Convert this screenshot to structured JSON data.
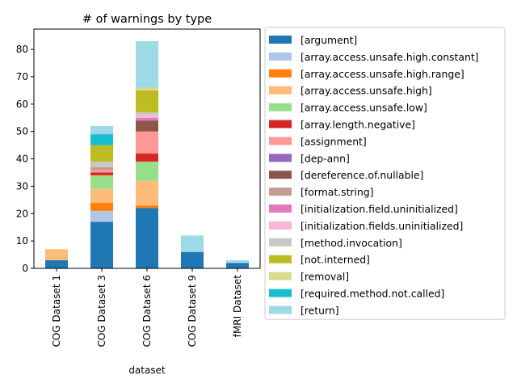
{
  "chart_data": {
    "type": "bar",
    "stacked": true,
    "title": "# of warnings by type",
    "xlabel": "dataset",
    "ylabel": "",
    "ylim": [
      0,
      87.4
    ],
    "yticks": [
      0,
      10,
      20,
      30,
      40,
      50,
      60,
      70,
      80
    ],
    "grid": false,
    "legend_position": "right-outside",
    "categories": [
      "COG Dataset 1",
      "COG Dataset 3",
      "COG Dataset 6",
      "COG Dataset 9",
      "fMRI Dataset"
    ],
    "series": [
      {
        "name": "[argument]",
        "color": "#1f77b4",
        "values": [
          3,
          17,
          22,
          6,
          2
        ]
      },
      {
        "name": "[array.access.unsafe.high.constant]",
        "color": "#aec7e8",
        "values": [
          0,
          4,
          0,
          0,
          0
        ]
      },
      {
        "name": "[array.access.unsafe.high.range]",
        "color": "#ff7f0e",
        "values": [
          0,
          3,
          1,
          0,
          0
        ]
      },
      {
        "name": "[array.access.unsafe.high]",
        "color": "#ffbb78",
        "values": [
          4,
          5,
          9,
          0,
          0
        ]
      },
      {
        "name": "[array.access.unsafe.low]",
        "color": "#98df8a",
        "values": [
          0,
          5,
          7,
          0,
          0
        ]
      },
      {
        "name": "[array.length.negative]",
        "color": "#d62728",
        "values": [
          0,
          1,
          3,
          0,
          0
        ]
      },
      {
        "name": "[assignment]",
        "color": "#ff9896",
        "values": [
          0,
          1,
          8,
          0,
          0
        ]
      },
      {
        "name": "[dep-ann]",
        "color": "#9467bd",
        "values": [
          0,
          0,
          0,
          0,
          0
        ]
      },
      {
        "name": "[dereference.of.nullable]",
        "color": "#8c564b",
        "values": [
          0,
          0,
          4,
          0,
          0
        ]
      },
      {
        "name": "[format.string]",
        "color": "#c49c94",
        "values": [
          0,
          1,
          0,
          0,
          0
        ]
      },
      {
        "name": "[initialization.field.uninitialized]",
        "color": "#e377c2",
        "values": [
          0,
          0,
          1,
          0,
          0
        ]
      },
      {
        "name": "[initialization.fields.uninitialized]",
        "color": "#f7b6d2",
        "values": [
          0,
          0,
          1,
          0,
          0
        ]
      },
      {
        "name": "[method.invocation]",
        "color": "#c7c7c7",
        "values": [
          0,
          2,
          1,
          0,
          0
        ]
      },
      {
        "name": "[not.interned]",
        "color": "#bcbd22",
        "values": [
          0,
          6,
          8,
          0,
          0
        ]
      },
      {
        "name": "[removal]",
        "color": "#dbdb8d",
        "values": [
          0,
          0,
          1,
          0,
          0
        ]
      },
      {
        "name": "[required.method.not.called]",
        "color": "#17becf",
        "values": [
          0,
          4,
          0,
          0,
          0
        ]
      },
      {
        "name": "[return]",
        "color": "#9edae5",
        "values": [
          0,
          3,
          17,
          6,
          1
        ]
      }
    ]
  }
}
